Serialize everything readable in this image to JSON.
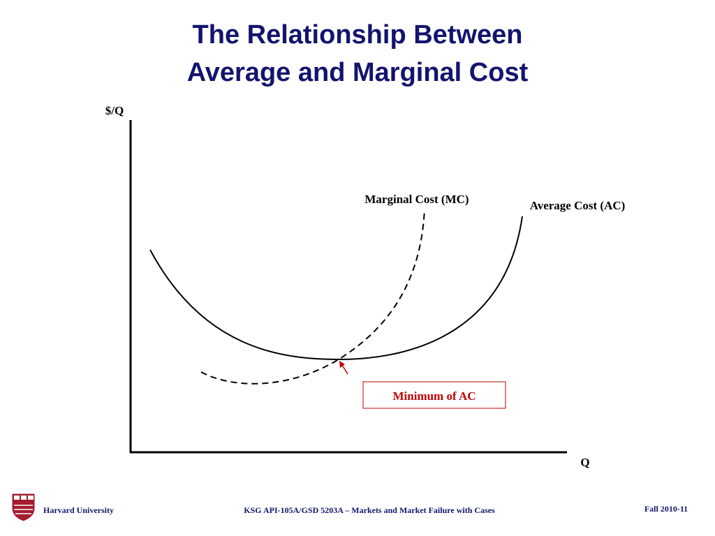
{
  "header": {
    "title_lines": [
      "The Relationship Between",
      "Average and Marginal Cost"
    ]
  },
  "diagram": {
    "y_axis_label": "$/Q",
    "x_axis_label": "Q",
    "curves": [
      {
        "label": "Marginal Cost (MC)"
      },
      {
        "label": "Average Cost (AC)"
      }
    ],
    "annotation": "Minimum of AC"
  },
  "footer": {
    "institution": "Harvard University",
    "course": "KSG API-105A/GSD 5203A – Markets and Market Failure with Cases",
    "term": "Fall 2010-11"
  }
}
